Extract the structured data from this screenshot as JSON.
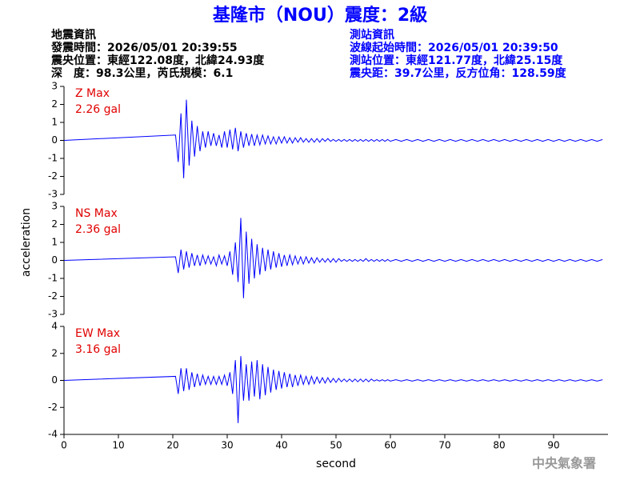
{
  "header": {
    "title": "基隆市（NOU）震度：2級",
    "left": [
      "地震資訊",
      "發震時間：2026/05/01 20:39:55",
      "震央位置：東經122.08度，北緯24.93度",
      "深　度：98.3公里，芮氏規模：6.1"
    ],
    "right": [
      "測站資訊",
      "波線起始時間：2026/05/01 20:39:50",
      "測站位置：東經121.77度，北緯25.15度",
      "震央距：39.7公里，反方位角：128.59度"
    ],
    "footer": "中央氣象署"
  },
  "chart_data": [
    {
      "type": "line",
      "annotations": [
        "Z Max",
        "2.26 gal"
      ],
      "annotation_color": "#e00000",
      "xlim": [
        0,
        100
      ],
      "ylim": [
        -3,
        3
      ],
      "yticks": [
        -3,
        -2,
        -1,
        0,
        1,
        2,
        3
      ],
      "x": [
        0,
        20.5,
        21,
        21.5,
        22,
        22.5,
        23,
        23.5,
        24,
        24.5,
        25,
        25.5,
        26,
        26.5,
        27,
        27.5,
        28,
        28.5,
        29,
        29.5,
        30,
        30.5,
        31,
        31.5,
        32,
        32.5,
        33,
        33.5,
        34,
        34.5,
        35,
        35.5,
        36,
        36.5,
        37,
        37.5,
        38,
        38.5,
        39,
        39.5,
        40,
        40.5,
        41,
        41.5,
        42,
        42.5,
        43,
        43.5,
        44,
        44.5,
        45,
        45.5,
        46,
        46.5,
        47,
        47.5,
        48,
        48.5,
        49,
        49.5,
        50,
        50.5,
        51,
        51.5,
        52,
        52.5,
        53,
        53.5,
        54,
        54.5,
        55,
        55.5,
        56,
        56.5,
        57,
        57.5,
        58,
        58.5,
        59,
        59.5,
        60,
        61,
        62,
        63,
        64,
        65,
        66,
        67,
        68,
        69,
        70,
        71,
        72,
        73,
        74,
        75,
        76,
        77,
        78,
        79,
        80,
        81,
        82,
        83,
        84,
        85,
        86,
        87,
        88,
        89,
        90,
        91,
        92,
        93,
        94,
        95,
        96,
        97,
        98,
        99
      ],
      "series": [
        {
          "color": "#0000ff",
          "values": [
            0,
            0.3,
            -1.2,
            1.5,
            -2.1,
            2.26,
            -1.4,
            1.1,
            -0.9,
            0.8,
            -0.6,
            0.5,
            -0.4,
            0.5,
            -0.3,
            0.4,
            -0.3,
            0.3,
            -0.4,
            0.5,
            -0.4,
            0.6,
            -0.5,
            0.7,
            -0.6,
            0.5,
            -0.4,
            0.4,
            -0.3,
            0.35,
            -0.3,
            0.3,
            -0.25,
            0.3,
            -0.2,
            0.25,
            -0.2,
            0.2,
            -0.2,
            0.2,
            -0.15,
            0.2,
            -0.15,
            0.15,
            -0.15,
            0.15,
            -0.1,
            0.15,
            -0.1,
            0.1,
            -0.1,
            0.1,
            -0.1,
            0.1,
            -0.1,
            0.1,
            -0.05,
            0.1,
            -0.05,
            0.05,
            -0.05,
            0.05,
            -0.05,
            0.05,
            -0.05,
            0.05,
            -0.05,
            0.05,
            -0.05,
            0.05,
            -0.05,
            0.05,
            -0.05,
            0.05,
            -0.05,
            0.05,
            -0.05,
            0.05,
            -0.05,
            0.05,
            -0.05,
            0.05,
            -0.05,
            0.05,
            -0.05,
            0.05,
            -0.05,
            0.05,
            -0.05,
            0.05,
            -0.05,
            0.05,
            -0.05,
            0.05,
            -0.05,
            0.05,
            -0.05,
            0.05,
            -0.05,
            0.05,
            -0.05,
            0.05,
            -0.05,
            0.05,
            -0.05,
            0.05,
            -0.05,
            0.05,
            -0.05,
            0.05,
            -0.05,
            0.05,
            -0.05,
            0.05,
            -0.05,
            0.05,
            -0.05,
            0.05,
            -0.05,
            0.05
          ]
        }
      ]
    },
    {
      "type": "line",
      "annotations": [
        "NS Max",
        "2.36 gal"
      ],
      "annotation_color": "#e00000",
      "ylabel": "acceleration",
      "xlim": [
        0,
        100
      ],
      "ylim": [
        -3,
        3
      ],
      "yticks": [
        -3,
        -2,
        -1,
        0,
        1,
        2,
        3
      ],
      "x": [
        0,
        20.5,
        21,
        21.5,
        22,
        22.5,
        23,
        23.5,
        24,
        24.5,
        25,
        25.5,
        26,
        26.5,
        27,
        27.5,
        28,
        28.5,
        29,
        29.5,
        30,
        30.5,
        31,
        31.5,
        32,
        32.5,
        33,
        33.5,
        34,
        34.5,
        35,
        35.5,
        36,
        36.5,
        37,
        37.5,
        38,
        38.5,
        39,
        39.5,
        40,
        40.5,
        41,
        41.5,
        42,
        42.5,
        43,
        43.5,
        44,
        44.5,
        45,
        45.5,
        46,
        46.5,
        47,
        47.5,
        48,
        48.5,
        49,
        49.5,
        50,
        50.5,
        51,
        51.5,
        52,
        52.5,
        53,
        53.5,
        54,
        54.5,
        55,
        55.5,
        56,
        56.5,
        57,
        57.5,
        58,
        58.5,
        59,
        59.5,
        60,
        61,
        62,
        63,
        64,
        65,
        66,
        67,
        68,
        69,
        70,
        71,
        72,
        73,
        74,
        75,
        76,
        77,
        78,
        79,
        80,
        81,
        82,
        83,
        84,
        85,
        86,
        87,
        88,
        89,
        90,
        91,
        92,
        93,
        94,
        95,
        96,
        97,
        98,
        99
      ],
      "series": [
        {
          "color": "#0000ff",
          "values": [
            0,
            0.2,
            -0.7,
            0.6,
            -0.5,
            0.5,
            -0.4,
            0.4,
            -0.3,
            0.3,
            -0.3,
            0.3,
            -0.2,
            0.25,
            -0.2,
            0.2,
            -0.3,
            0.3,
            -0.2,
            0.25,
            -0.3,
            0.5,
            -0.8,
            1.0,
            -1.2,
            2.36,
            -2.1,
            1.6,
            -1.3,
            1.2,
            -1.0,
            0.9,
            -0.8,
            0.7,
            -0.6,
            0.6,
            -0.5,
            0.5,
            -0.4,
            0.4,
            -0.35,
            0.3,
            -0.3,
            0.3,
            -0.25,
            0.25,
            -0.2,
            0.2,
            -0.2,
            0.2,
            -0.15,
            0.15,
            -0.15,
            0.15,
            -0.1,
            0.1,
            -0.1,
            0.1,
            -0.1,
            0.1,
            -0.1,
            0.1,
            -0.05,
            0.05,
            -0.05,
            0.05,
            -0.05,
            0.05,
            -0.05,
            0.05,
            -0.05,
            0.1,
            -0.05,
            0.05,
            -0.05,
            0.05,
            -0.05,
            0.05,
            -0.05,
            0.05,
            -0.05,
            0.05,
            -0.05,
            0.05,
            -0.05,
            0.05,
            -0.05,
            0.05,
            -0.05,
            0.05,
            -0.05,
            0.05,
            -0.05,
            0.05,
            -0.05,
            0.05,
            -0.05,
            0.05,
            -0.05,
            0.05,
            -0.05,
            0.05,
            -0.05,
            0.05,
            -0.05,
            0.05,
            -0.05,
            0.05,
            -0.05,
            0.05,
            -0.05,
            0.05,
            -0.05,
            0.05,
            -0.05,
            0.05,
            -0.05,
            0.05,
            -0.05,
            0.05
          ]
        }
      ]
    },
    {
      "type": "line",
      "annotations": [
        "EW Max",
        "3.16 gal"
      ],
      "annotation_color": "#e00000",
      "xlabel": "second",
      "xlim": [
        0,
        100
      ],
      "xticks": [
        0,
        10,
        20,
        30,
        40,
        50,
        60,
        70,
        80,
        90
      ],
      "ylim": [
        -4,
        4
      ],
      "yticks": [
        -4,
        -2,
        0,
        2,
        4
      ],
      "x": [
        0,
        20.5,
        21,
        21.5,
        22,
        22.5,
        23,
        23.5,
        24,
        24.5,
        25,
        25.5,
        26,
        26.5,
        27,
        27.5,
        28,
        28.5,
        29,
        29.5,
        30,
        30.5,
        31,
        31.5,
        32,
        32.5,
        33,
        33.5,
        34,
        34.5,
        35,
        35.5,
        36,
        36.5,
        37,
        37.5,
        38,
        38.5,
        39,
        39.5,
        40,
        40.5,
        41,
        41.5,
        42,
        42.5,
        43,
        43.5,
        44,
        44.5,
        45,
        45.5,
        46,
        46.5,
        47,
        47.5,
        48,
        48.5,
        49,
        49.5,
        50,
        50.5,
        51,
        51.5,
        52,
        52.5,
        53,
        53.5,
        54,
        54.5,
        55,
        55.5,
        56,
        56.5,
        57,
        57.5,
        58,
        58.5,
        59,
        59.5,
        60,
        61,
        62,
        63,
        64,
        65,
        66,
        67,
        68,
        69,
        70,
        71,
        72,
        73,
        74,
        75,
        76,
        77,
        78,
        79,
        80,
        81,
        82,
        83,
        84,
        85,
        86,
        87,
        88,
        89,
        90,
        91,
        92,
        93,
        94,
        95,
        96,
        97,
        98,
        99
      ],
      "series": [
        {
          "color": "#0000ff",
          "values": [
            0,
            0.3,
            -1.0,
            0.9,
            -0.8,
            0.9,
            -0.7,
            0.6,
            -0.5,
            0.5,
            -0.4,
            0.4,
            -0.3,
            0.3,
            -0.3,
            0.3,
            -0.3,
            0.3,
            -0.3,
            0.4,
            -0.4,
            0.6,
            -1.0,
            1.5,
            -3.16,
            1.8,
            -1.5,
            1.2,
            -1.5,
            1.4,
            -1.2,
            1.5,
            -1.4,
            1.2,
            -1.1,
            1.0,
            -0.9,
            0.8,
            -0.7,
            0.7,
            -0.6,
            0.6,
            -0.5,
            0.5,
            -0.5,
            0.4,
            -0.4,
            0.4,
            -0.3,
            0.3,
            -0.3,
            0.3,
            -0.25,
            0.25,
            -0.2,
            0.2,
            -0.2,
            0.2,
            -0.15,
            0.15,
            -0.15,
            0.15,
            -0.1,
            0.1,
            -0.1,
            0.1,
            -0.1,
            0.1,
            -0.1,
            0.1,
            -0.1,
            0.1,
            -0.1,
            0.1,
            -0.05,
            0.05,
            -0.05,
            0.05,
            -0.05,
            0.05,
            -0.05,
            0.05,
            -0.05,
            0.05,
            -0.05,
            0.05,
            -0.05,
            0.05,
            -0.05,
            0.05,
            -0.05,
            0.05,
            -0.05,
            0.05,
            -0.05,
            0.05,
            -0.05,
            0.05,
            -0.05,
            0.05,
            -0.05,
            0.05,
            -0.05,
            0.05,
            -0.05,
            0.05,
            -0.05,
            0.05,
            -0.05,
            0.05,
            -0.05,
            0.05,
            -0.05,
            0.05,
            -0.05,
            0.05,
            -0.05,
            0.05,
            -0.05,
            0.05
          ]
        }
      ]
    }
  ]
}
